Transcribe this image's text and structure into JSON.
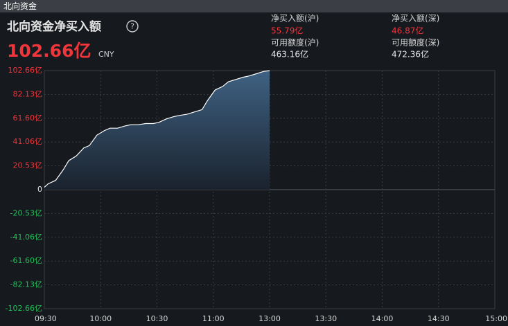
{
  "window_title": "北向资金",
  "header": {
    "title": "北向资金净买入额",
    "help": "?",
    "value": "102.66亿",
    "currency": "CNY",
    "stats": [
      {
        "label": "净买入额(沪)",
        "value": "55.79亿"
      },
      {
        "label": "净买入额(深)",
        "value": "46.87亿"
      },
      {
        "label": "可用额度(沪)",
        "value": "463.16亿"
      },
      {
        "label": "可用额度(深)",
        "value": "472.36亿"
      }
    ]
  },
  "chart_data": {
    "type": "area",
    "x": [
      0,
      2,
      6,
      10,
      13,
      17,
      21,
      24,
      28,
      32,
      35,
      39,
      43,
      46,
      50,
      54,
      58,
      61,
      65,
      69,
      72,
      76,
      80,
      84,
      87,
      91,
      95,
      98,
      102,
      106,
      109,
      113,
      117,
      120
    ],
    "values": [
      2,
      5,
      8,
      17,
      25,
      29,
      36,
      38,
      47,
      51,
      53,
      53,
      55,
      56,
      56,
      57,
      57,
      58,
      61,
      63,
      64,
      65,
      67,
      69,
      77,
      86,
      89,
      93,
      95,
      97,
      98,
      100,
      102,
      102.66
    ],
    "color": "#ffffff",
    "fill_color": "#3f6283",
    "xlim": [
      0,
      240
    ],
    "xticks": [
      {
        "value": 0,
        "label": "09:30"
      },
      {
        "value": 30,
        "label": "10:00"
      },
      {
        "value": 60,
        "label": "10:30"
      },
      {
        "value": 90,
        "label": "11:00"
      },
      {
        "value": 120,
        "label": "13:00"
      },
      {
        "value": 150,
        "label": "13:30"
      },
      {
        "value": 180,
        "label": "14:00"
      },
      {
        "value": 210,
        "label": "14:30"
      },
      {
        "value": 240,
        "label": "15:00"
      }
    ],
    "ylim": [
      -102.66,
      102.66
    ],
    "yticks": [
      {
        "value": 102.66,
        "label": "102.66亿"
      },
      {
        "value": 82.13,
        "label": "82.13亿"
      },
      {
        "value": 61.6,
        "label": "61.60亿"
      },
      {
        "value": 41.06,
        "label": "41.06亿"
      },
      {
        "value": 20.53,
        "label": "20.53亿"
      },
      0,
      {
        "value": -20.53,
        "label": "-20.53亿"
      },
      {
        "value": -41.06,
        "label": "-41.06亿"
      },
      {
        "value": -61.6,
        "label": "-61.60亿"
      },
      {
        "value": -82.13,
        "label": "-82.13亿"
      },
      {
        "value": -102.66,
        "label": "-102.66亿"
      }
    ],
    "grid": true,
    "up_color": "#f0353b",
    "down_color": "#22c05a",
    "zero_color": "#e8e8e8"
  }
}
